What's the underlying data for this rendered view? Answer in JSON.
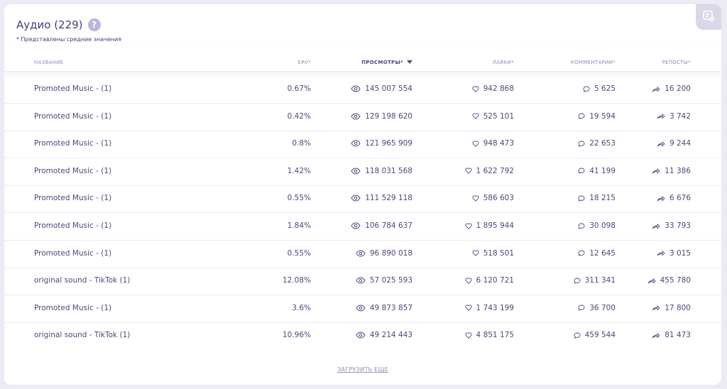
{
  "header": {
    "title": "Аудио (229)",
    "help_symbol": "?",
    "note": "* Представлены средние значения"
  },
  "columns": {
    "name": "НАЗВАНИЕ",
    "erv": "ERV*",
    "views": "ПРОСМОТРЫ*",
    "likes": "ЛАЙКИ*",
    "comments": "КОММЕНТАРИИ*",
    "reposts": "РЕПОСТЫ*"
  },
  "sort": {
    "column": "views",
    "direction": "desc"
  },
  "rows": [
    {
      "name": "Promoted Music - (1)",
      "erv": "0.67%",
      "views": "145 007 554",
      "likes": "942 868",
      "comments": "5 625",
      "reposts": "16 200"
    },
    {
      "name": "Promoted Music - (1)",
      "erv": "0.42%",
      "views": "129 198 620",
      "likes": "525 101",
      "comments": "19 594",
      "reposts": "3 742"
    },
    {
      "name": "Promoted Music - (1)",
      "erv": "0.8%",
      "views": "121 965 909",
      "likes": "948 473",
      "comments": "22 653",
      "reposts": "9 244"
    },
    {
      "name": "Promoted Music - (1)",
      "erv": "1.42%",
      "views": "118 031 568",
      "likes": "1 622 792",
      "comments": "41 199",
      "reposts": "11 386"
    },
    {
      "name": "Promoted Music - (1)",
      "erv": "0.55%",
      "views": "111 529 118",
      "likes": "586 603",
      "comments": "18 215",
      "reposts": "6 676"
    },
    {
      "name": "Promoted Music - (1)",
      "erv": "1.84%",
      "views": "106 784 637",
      "likes": "1 895 944",
      "comments": "30 098",
      "reposts": "33 793"
    },
    {
      "name": "Promoted Music - (1)",
      "erv": "0.55%",
      "views": "96 890 018",
      "likes": "518 501",
      "comments": "12 645",
      "reposts": "3 015"
    },
    {
      "name": "original sound - TikTok (1)",
      "erv": "12.08%",
      "views": "57 025 593",
      "likes": "6 120 721",
      "comments": "311 341",
      "reposts": "455 780"
    },
    {
      "name": "Promoted Music - (1)",
      "erv": "3.6%",
      "views": "49 873 857",
      "likes": "1 743 199",
      "comments": "36 700",
      "reposts": "17 800"
    },
    {
      "name": "original sound - TikTok (1)",
      "erv": "10.96%",
      "views": "49 214 443",
      "likes": "4 851 175",
      "comments": "459 544",
      "reposts": "81 473"
    }
  ],
  "footer": {
    "load_more": "ЗАГРУЗИТЬ ЕЩЕ"
  },
  "icons": {
    "views": "eye-icon",
    "likes": "heart-icon",
    "comments": "comment-icon",
    "reposts": "share-icon",
    "export": "export-icon",
    "help": "help-icon"
  },
  "colors": {
    "text": "#4a4880",
    "muted": "#8f8cb8",
    "accent": "#b9b6d8",
    "background": "#eceaf2",
    "card": "#ffffff"
  }
}
